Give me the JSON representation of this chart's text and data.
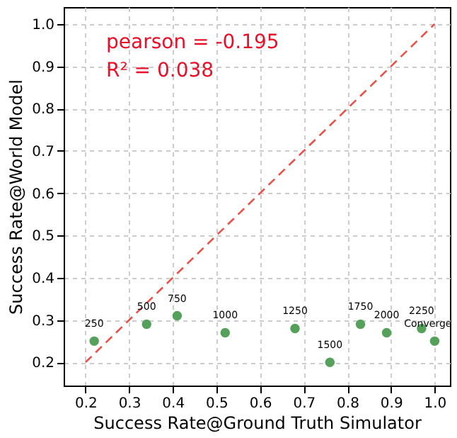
{
  "chart_data": {
    "type": "scatter",
    "xlabel": "Success Rate@Ground Truth Simulator",
    "ylabel": "Success Rate@World Model",
    "x": [
      0.22,
      0.34,
      0.41,
      0.52,
      0.68,
      0.76,
      0.83,
      0.89,
      0.97,
      1.0
    ],
    "series": [
      {
        "type": "scatter",
        "marker": "circle",
        "color": "#55a05a",
        "values": [
          0.25,
          0.29,
          0.31,
          0.27,
          0.28,
          0.2,
          0.29,
          0.27,
          0.28,
          0.25
        ]
      },
      {
        "type": "line",
        "color": "#e8524a",
        "line_style": "dashed",
        "x": [
          0.2,
          1.0
        ],
        "values": [
          0.2,
          1.0
        ]
      }
    ],
    "xlim": [
      0.15,
      1.035
    ],
    "ylim": [
      0.145,
      1.04
    ],
    "xticks": [
      0.2,
      0.3,
      0.4,
      0.5,
      0.6,
      0.7,
      0.8,
      0.9,
      {
        "value": 1.0,
        "label": "1.0"
      }
    ],
    "yticks": [
      0.2,
      0.3,
      0.4,
      0.5,
      0.6,
      0.7,
      0.8,
      0.9,
      {
        "value": 1.0,
        "label": "1.0"
      }
    ],
    "grid": true,
    "annotations": [
      "pearson = -0.195",
      "R² = 0.038",
      {
        "text": "250",
        "x": 0.22,
        "y": 0.25
      },
      {
        "text": "500",
        "x": 0.34,
        "y": 0.29
      },
      {
        "text": "750",
        "x": 0.41,
        "y": 0.31
      },
      {
        "text": "1000",
        "x": 0.52,
        "y": 0.27
      },
      {
        "text": "1250",
        "x": 0.68,
        "y": 0.28
      },
      {
        "text": "1500",
        "x": 0.76,
        "y": 0.2
      },
      {
        "text": "1750",
        "x": 0.83,
        "y": 0.29
      },
      {
        "text": "2000",
        "x": 0.89,
        "y": 0.27
      },
      {
        "text": "2250",
        "x": 0.97,
        "y": 0.28
      },
      {
        "text": "Converge",
        "x": 1.0,
        "y": 0.25
      }
    ]
  }
}
